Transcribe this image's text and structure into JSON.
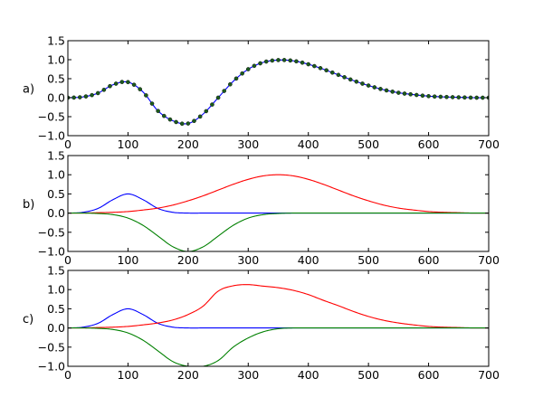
{
  "chart_data": [
    {
      "type": "line",
      "panel_label": "a)",
      "x": [
        0,
        25,
        50,
        75,
        100,
        125,
        150,
        175,
        200,
        225,
        250,
        275,
        300,
        325,
        350,
        375,
        400,
        425,
        450,
        475,
        500,
        525,
        550,
        575,
        600,
        625,
        650,
        675,
        700
      ],
      "xlim": [
        0,
        700
      ],
      "ylim": [
        -1.0,
        1.5
      ],
      "xticks": [
        "0",
        "100",
        "200",
        "300",
        "400",
        "500",
        "600",
        "700"
      ],
      "yticks": [
        "1.5",
        "1.0",
        "0.5",
        "0.0",
        "−0.5",
        "−1.0"
      ],
      "grid": false,
      "series": [
        {
          "color": "#0000ff",
          "marker_color": "#1c5a1c",
          "marker_every": 10,
          "values": [
            0.0,
            0.02,
            0.12,
            0.34,
            0.41,
            0.15,
            -0.35,
            -0.61,
            -0.68,
            -0.43,
            0.0,
            0.43,
            0.75,
            0.93,
            0.99,
            0.97,
            0.88,
            0.75,
            0.6,
            0.45,
            0.32,
            0.21,
            0.13,
            0.08,
            0.04,
            0.02,
            0.01,
            0.0,
            0.0
          ]
        }
      ]
    },
    {
      "type": "line",
      "panel_label": "b)",
      "x": [
        0,
        25,
        50,
        75,
        100,
        125,
        150,
        175,
        200,
        225,
        250,
        275,
        300,
        325,
        350,
        375,
        400,
        425,
        450,
        475,
        500,
        525,
        550,
        575,
        600,
        625,
        650,
        675,
        700
      ],
      "xlim": [
        0,
        700
      ],
      "ylim": [
        -1.0,
        1.5
      ],
      "xticks": [
        "0",
        "100",
        "200",
        "300",
        "400",
        "500",
        "600",
        "700"
      ],
      "yticks": [
        "1.5",
        "1.0",
        "0.5",
        "0.0",
        "−0.5",
        "−1.0"
      ],
      "grid": false,
      "series": [
        {
          "color": "#0000ff",
          "values": [
            0.0,
            0.02,
            0.12,
            0.35,
            0.5,
            0.35,
            0.12,
            0.02,
            0,
            0,
            0,
            0,
            0,
            0,
            0,
            0,
            0,
            0,
            0,
            0,
            0,
            0,
            0,
            0,
            0,
            0,
            0,
            0,
            0
          ]
        },
        {
          "color": "#ff0000",
          "values": [
            0.0,
            0.0,
            0.01,
            0.02,
            0.04,
            0.08,
            0.13,
            0.21,
            0.32,
            0.45,
            0.6,
            0.75,
            0.88,
            0.97,
            1.0,
            0.97,
            0.88,
            0.75,
            0.6,
            0.45,
            0.32,
            0.21,
            0.13,
            0.08,
            0.04,
            0.02,
            0.01,
            0.0,
            0.0
          ]
        },
        {
          "color": "#008000",
          "values": [
            0.0,
            0.0,
            -0.01,
            -0.04,
            -0.13,
            -0.32,
            -0.6,
            -0.88,
            -1.0,
            -0.88,
            -0.6,
            -0.32,
            -0.13,
            -0.04,
            -0.01,
            0,
            0,
            0,
            0,
            0,
            0,
            0,
            0,
            0,
            0,
            0,
            0,
            0,
            0
          ]
        }
      ]
    },
    {
      "type": "line",
      "panel_label": "c)",
      "x": [
        0,
        25,
        50,
        75,
        100,
        125,
        150,
        175,
        200,
        225,
        250,
        275,
        300,
        325,
        350,
        375,
        400,
        425,
        450,
        475,
        500,
        525,
        550,
        575,
        600,
        625,
        650,
        675,
        700
      ],
      "xlim": [
        0,
        700
      ],
      "ylim": [
        -1.0,
        1.5
      ],
      "xticks": [
        "0",
        "100",
        "200",
        "300",
        "400",
        "500",
        "600",
        "700"
      ],
      "yticks": [
        "1.5",
        "1.0",
        "0.5",
        "0.0",
        "−0.5",
        "−1.0"
      ],
      "grid": false,
      "series": [
        {
          "color": "#0000ff",
          "values": [
            0.0,
            0.02,
            0.12,
            0.35,
            0.5,
            0.35,
            0.12,
            0.02,
            0,
            0,
            0,
            0,
            0,
            0,
            0,
            0,
            0,
            0,
            0,
            0,
            0,
            0,
            0,
            0,
            0,
            0,
            0,
            0,
            0
          ]
        },
        {
          "color": "#ff0000",
          "values": [
            0.0,
            0.0,
            0.01,
            0.02,
            0.04,
            0.08,
            0.13,
            0.21,
            0.35,
            0.57,
            0.96,
            1.1,
            1.13,
            1.09,
            1.05,
            0.98,
            0.87,
            0.72,
            0.58,
            0.43,
            0.3,
            0.2,
            0.13,
            0.08,
            0.04,
            0.02,
            0.01,
            0.0,
            0.0
          ]
        },
        {
          "color": "#008000",
          "values": [
            0.0,
            0.0,
            -0.01,
            -0.04,
            -0.13,
            -0.32,
            -0.6,
            -0.88,
            -1.0,
            -1.0,
            -0.85,
            -0.5,
            -0.26,
            -0.1,
            -0.02,
            0,
            0,
            0,
            0,
            0,
            0,
            0,
            0,
            0,
            0,
            0,
            0,
            0,
            0
          ]
        }
      ]
    }
  ]
}
